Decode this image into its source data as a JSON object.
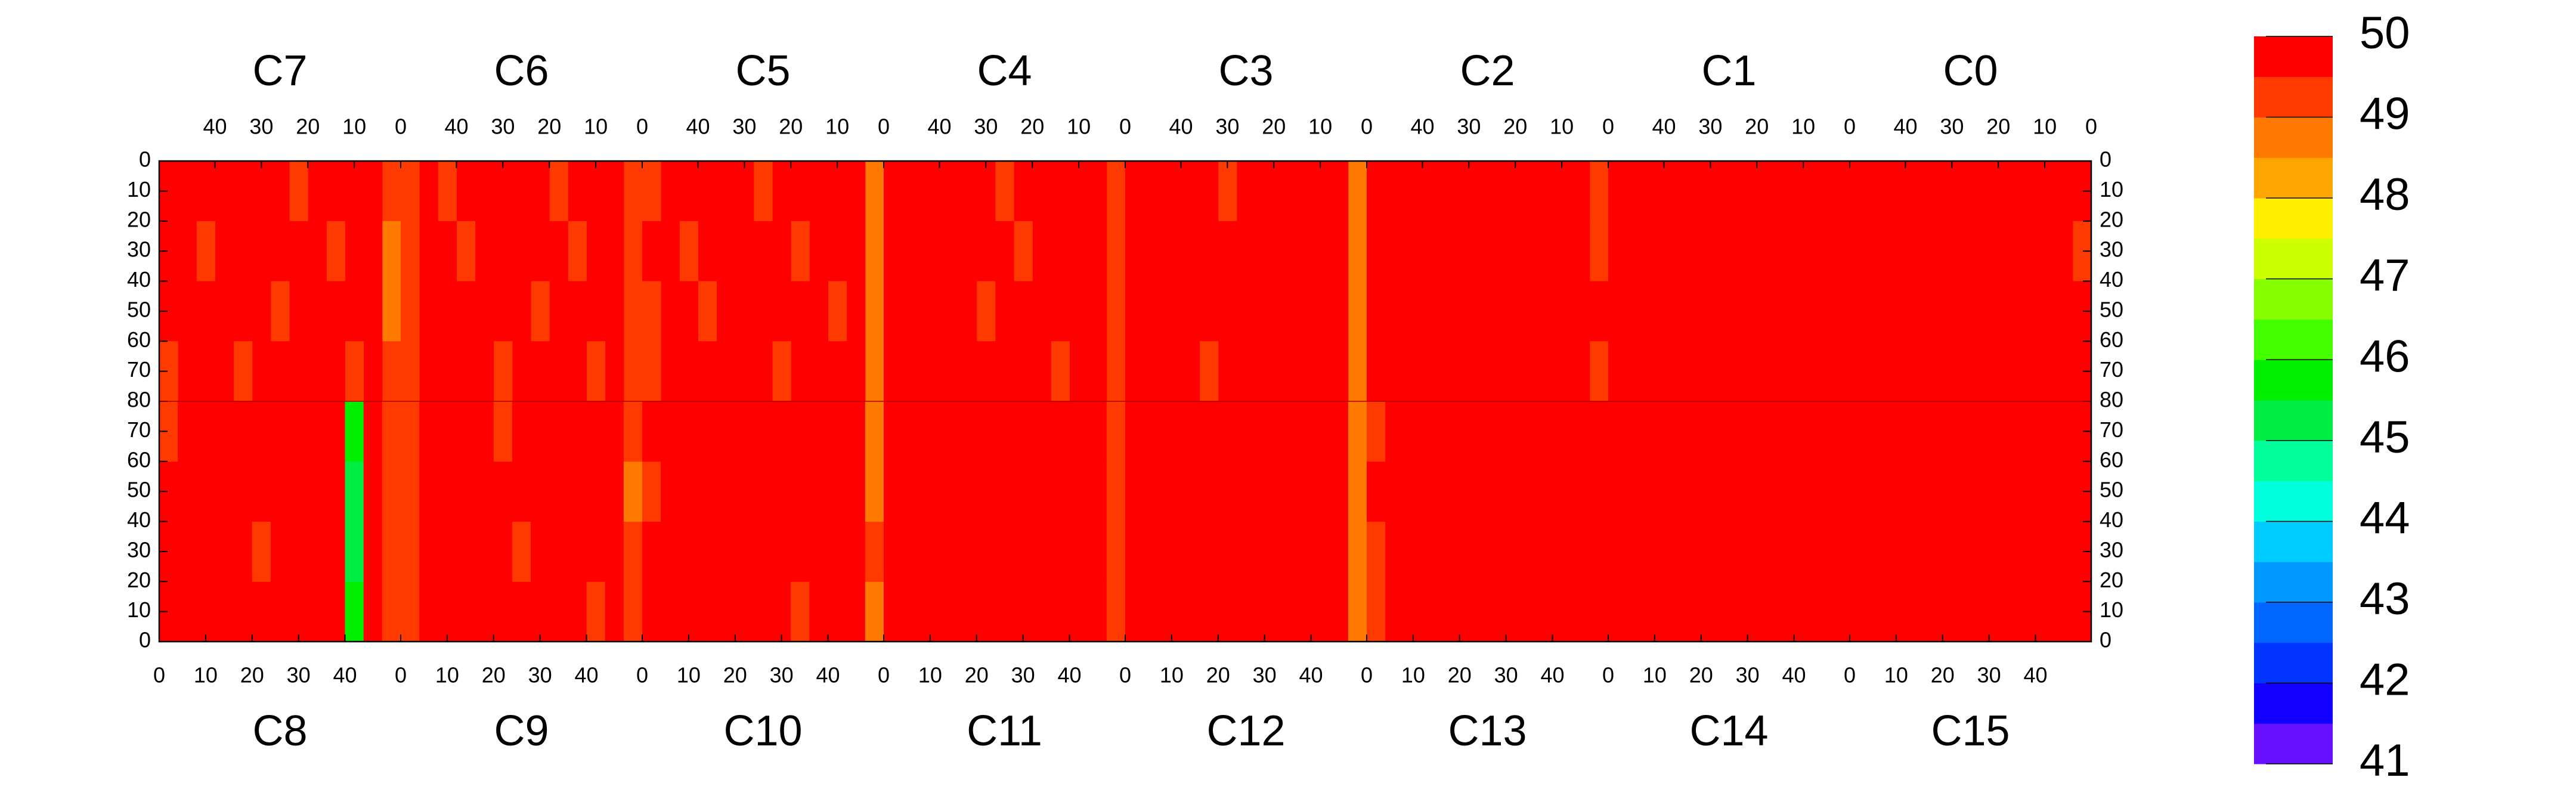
{
  "chart_data": {
    "type": "heatmap",
    "xlim": [
      0,
      52
    ],
    "ylim": [
      0,
      80
    ],
    "xticks": [
      0,
      10,
      20,
      30,
      40
    ],
    "yticks": [
      0,
      10,
      20,
      30,
      40,
      50,
      60,
      70,
      80
    ],
    "zlim": [
      41,
      50
    ],
    "zticks": [
      41,
      42,
      43,
      44,
      45,
      46,
      47,
      48,
      49,
      50
    ],
    "colorscale": [
      "#6610ff",
      "#1100ff",
      "#0033ff",
      "#0066ff",
      "#0099ff",
      "#00ccff",
      "#00ffdd",
      "#00ff99",
      "#00ee44",
      "#00f000",
      "#44ff00",
      "#88ff00",
      "#ccff00",
      "#ffee00",
      "#ffa500",
      "#ff7a00",
      "#ff3a00",
      "#ff0000"
    ],
    "top_panels": [
      {
        "label": "C7",
        "z": [
          [
            49.1,
            49.6,
            49.5,
            49.7,
            49.6,
            49.4,
            49.6,
            49.7,
            49.6,
            49.5,
            49.6,
            49.7,
            49.6
          ],
          [
            48.9,
            49.6,
            49.6,
            49.4,
            49.7,
            49.6,
            49.5,
            49.6,
            49.7,
            49.6,
            49.4,
            49.6,
            49.5
          ],
          [
            48.9,
            49.5,
            49.6,
            49.7,
            49.6,
            49.6,
            49.4,
            49.6,
            49.6,
            49.7,
            49.6,
            49.5,
            49.6
          ],
          [
            49.0,
            49.6,
            49.4,
            49.6,
            49.7,
            49.5,
            49.6,
            49.6,
            49.4,
            49.6,
            49.7,
            49.6,
            49.4
          ]
        ]
      },
      {
        "label": "C6",
        "z": [
          [
            49.3,
            49.6,
            49.5,
            49.6,
            49.4,
            49.6,
            49.7,
            49.5,
            49.6,
            49.6,
            49.4,
            49.6,
            49.3
          ],
          [
            49.2,
            49.5,
            49.6,
            49.4,
            49.6,
            49.6,
            49.5,
            49.7,
            49.6,
            49.4,
            49.6,
            49.5,
            49.4
          ],
          [
            49.3,
            49.6,
            49.6,
            49.7,
            49.5,
            49.4,
            49.6,
            49.6,
            49.5,
            49.6,
            49.7,
            49.6,
            49.3
          ],
          [
            49.1,
            49.6,
            49.4,
            49.6,
            49.6,
            49.5,
            49.6,
            49.4,
            49.6,
            49.6,
            49.5,
            49.6,
            49.4
          ]
        ]
      },
      {
        "label": "C5",
        "z": [
          [
            48.8,
            49.6,
            49.6,
            49.5,
            49.7,
            49.6,
            49.4,
            49.6,
            49.6,
            49.5,
            49.6,
            49.7,
            49.4
          ],
          [
            48.6,
            49.5,
            49.6,
            49.6,
            49.4,
            49.6,
            49.6,
            49.5,
            49.7,
            49.6,
            49.4,
            49.6,
            49.5
          ],
          [
            48.7,
            49.6,
            49.4,
            49.6,
            49.6,
            49.7,
            49.5,
            49.6,
            49.6,
            49.4,
            49.6,
            49.5,
            49.3
          ],
          [
            48.9,
            49.6,
            49.6,
            49.5,
            49.6,
            49.4,
            49.6,
            49.7,
            49.5,
            49.6,
            49.6,
            49.6,
            49.4
          ]
        ]
      },
      {
        "label": "C4",
        "z": [
          [
            49.2,
            49.6,
            49.7,
            49.5,
            49.6,
            49.6,
            49.4,
            49.6,
            49.7,
            49.6,
            49.5,
            49.6,
            49.6
          ],
          [
            49.1,
            49.6,
            49.5,
            49.6,
            49.7,
            49.4,
            49.6,
            49.6,
            49.5,
            49.6,
            49.6,
            49.7,
            49.5
          ],
          [
            49.2,
            49.7,
            49.6,
            49.6,
            49.5,
            49.6,
            49.6,
            49.4,
            49.6,
            49.7,
            49.6,
            49.5,
            49.6
          ],
          [
            49.0,
            49.6,
            49.6,
            49.4,
            49.6,
            49.7,
            49.5,
            49.6,
            49.6,
            49.5,
            49.6,
            49.6,
            49.5
          ]
        ]
      },
      {
        "label": "C3",
        "z": [
          [
            48.9,
            49.6,
            49.7,
            49.6,
            49.5,
            49.6,
            49.7,
            49.4,
            49.6,
            49.7,
            49.6,
            49.6,
            49.6
          ],
          [
            48.8,
            49.7,
            49.6,
            49.6,
            49.7,
            49.5,
            49.6,
            49.6,
            49.7,
            49.6,
            49.5,
            49.7,
            49.6
          ],
          [
            48.9,
            49.6,
            49.6,
            49.7,
            49.6,
            49.6,
            49.5,
            49.7,
            49.6,
            49.6,
            49.7,
            49.6,
            49.5
          ],
          [
            48.7,
            49.6,
            49.7,
            49.5,
            49.6,
            49.7,
            49.6,
            49.6,
            49.4,
            49.7,
            49.6,
            49.6,
            49.6
          ]
        ]
      },
      {
        "label": "C2",
        "z": [
          [
            49.4,
            49.9,
            49.9,
            49.8,
            49.9,
            49.8,
            49.8,
            49.7,
            49.7,
            49.6,
            49.7,
            49.6,
            49.7
          ],
          [
            49.4,
            49.9,
            49.8,
            49.9,
            49.9,
            49.8,
            49.7,
            49.8,
            49.6,
            49.7,
            49.6,
            49.7,
            49.6
          ],
          [
            49.5,
            49.9,
            49.9,
            49.9,
            49.8,
            49.9,
            49.8,
            49.7,
            49.7,
            49.6,
            49.7,
            49.7,
            49.6
          ],
          [
            49.4,
            49.9,
            49.9,
            49.8,
            49.9,
            49.8,
            49.8,
            49.7,
            49.6,
            49.7,
            49.6,
            49.6,
            49.7
          ]
        ]
      },
      {
        "label": "C1",
        "z": [
          [
            49.7,
            49.9,
            49.9,
            49.9,
            49.9,
            49.9,
            49.9,
            49.9,
            49.9,
            49.9,
            49.9,
            49.9,
            49.9
          ],
          [
            49.7,
            49.9,
            49.9,
            49.9,
            49.9,
            49.9,
            49.9,
            49.9,
            49.9,
            49.9,
            49.9,
            49.9,
            49.9
          ],
          [
            49.8,
            49.9,
            49.9,
            49.9,
            49.9,
            49.9,
            49.9,
            49.9,
            49.9,
            49.9,
            49.9,
            49.9,
            49.9
          ],
          [
            49.7,
            49.9,
            49.9,
            49.9,
            49.9,
            49.9,
            49.9,
            49.9,
            49.9,
            49.9,
            49.9,
            49.9,
            49.8
          ]
        ]
      },
      {
        "label": "C0",
        "z": [
          [
            49.5,
            49.8,
            49.9,
            49.8,
            49.8,
            49.9,
            49.8,
            49.8,
            49.9,
            49.8,
            49.8,
            49.9,
            49.8
          ],
          [
            49.4,
            49.8,
            49.8,
            49.9,
            49.8,
            49.8,
            49.9,
            49.8,
            49.8,
            49.9,
            49.8,
            49.8,
            49.9
          ],
          [
            49.5,
            49.9,
            49.8,
            49.8,
            49.9,
            49.8,
            49.8,
            49.9,
            49.8,
            49.8,
            49.9,
            49.8,
            49.8
          ],
          [
            49.5,
            49.8,
            49.8,
            49.9,
            49.8,
            49.8,
            49.9,
            49.8,
            49.8,
            49.8,
            49.8,
            49.9,
            49.8
          ]
        ]
      }
    ],
    "bottom_panels": [
      {
        "label": "C8",
        "z": [
          [
            49.5,
            49.6,
            49.6,
            49.5,
            49.7,
            49.6,
            49.6,
            49.5,
            49.6,
            49.6,
            45.6,
            49.6,
            49.2
          ],
          [
            49.6,
            49.5,
            49.6,
            49.7,
            49.6,
            49.4,
            49.6,
            49.6,
            49.5,
            49.7,
            45.2,
            49.6,
            49.1
          ],
          [
            49.6,
            49.6,
            49.5,
            49.6,
            49.6,
            49.6,
            49.5,
            49.7,
            49.6,
            49.6,
            45.0,
            49.5,
            49.2
          ],
          [
            49.4,
            49.6,
            49.7,
            49.6,
            49.5,
            49.6,
            49.6,
            49.6,
            49.7,
            49.5,
            45.8,
            49.6,
            49.0
          ]
        ]
      },
      {
        "label": "C9",
        "z": [
          [
            49.4,
            49.6,
            49.6,
            49.5,
            49.6,
            49.7,
            49.6,
            49.5,
            49.6,
            49.6,
            49.4,
            49.6,
            49.0
          ],
          [
            49.3,
            49.6,
            49.5,
            49.6,
            49.6,
            49.6,
            49.4,
            49.6,
            49.7,
            49.6,
            49.5,
            49.6,
            49.1
          ],
          [
            49.4,
            49.5,
            49.6,
            49.7,
            49.5,
            49.6,
            49.6,
            49.6,
            49.5,
            49.6,
            49.6,
            49.5,
            48.9
          ],
          [
            49.3,
            49.6,
            49.6,
            49.6,
            49.6,
            49.4,
            49.6,
            49.7,
            49.6,
            49.5,
            49.6,
            49.6,
            49.0
          ]
        ]
      },
      {
        "label": "C10",
        "z": [
          [
            49.5,
            49.6,
            49.7,
            49.6,
            49.5,
            49.6,
            49.6,
            49.6,
            49.4,
            49.6,
            49.6,
            49.5,
            48.9
          ],
          [
            49.5,
            49.6,
            49.6,
            49.6,
            49.6,
            49.5,
            49.7,
            49.6,
            49.6,
            49.5,
            49.6,
            49.6,
            49.0
          ],
          [
            49.4,
            49.7,
            49.6,
            49.5,
            49.6,
            49.6,
            49.6,
            49.5,
            49.6,
            49.6,
            49.7,
            49.6,
            48.6
          ],
          [
            49.5,
            49.6,
            49.5,
            49.6,
            49.7,
            49.6,
            49.5,
            49.6,
            49.6,
            49.6,
            49.5,
            49.6,
            48.9
          ]
        ]
      },
      {
        "label": "C11",
        "z": [
          [
            49.6,
            49.7,
            49.6,
            49.6,
            49.5,
            49.7,
            49.6,
            49.6,
            49.7,
            49.6,
            49.6,
            49.7,
            49.2
          ],
          [
            49.6,
            49.6,
            49.7,
            49.6,
            49.6,
            49.6,
            49.7,
            49.5,
            49.6,
            49.7,
            49.6,
            49.6,
            49.1
          ],
          [
            49.6,
            49.7,
            49.6,
            49.7,
            49.6,
            49.6,
            49.6,
            49.7,
            49.6,
            49.6,
            49.7,
            49.6,
            49.3
          ],
          [
            49.6,
            49.6,
            49.6,
            49.6,
            49.7,
            49.5,
            49.6,
            49.6,
            49.7,
            49.6,
            49.6,
            49.6,
            49.2
          ]
        ]
      },
      {
        "label": "C12",
        "z": [
          [
            49.6,
            49.7,
            49.6,
            49.7,
            49.6,
            49.7,
            49.6,
            49.7,
            49.6,
            49.7,
            49.7,
            49.6,
            48.8
          ],
          [
            49.6,
            49.7,
            49.7,
            49.6,
            49.7,
            49.6,
            49.7,
            49.6,
            49.7,
            49.6,
            49.7,
            49.7,
            48.9
          ],
          [
            49.5,
            49.6,
            49.7,
            49.7,
            49.6,
            49.7,
            49.6,
            49.7,
            49.7,
            49.6,
            49.6,
            49.7,
            48.7
          ],
          [
            49.6,
            49.7,
            49.6,
            49.7,
            49.7,
            49.6,
            49.7,
            49.6,
            49.7,
            49.7,
            49.6,
            49.6,
            48.8
          ]
        ]
      },
      {
        "label": "C13",
        "z": [
          [
            49.4,
            49.7,
            49.7,
            49.7,
            49.7,
            49.7,
            49.7,
            49.9,
            49.9,
            49.9,
            49.9,
            49.9,
            49.9
          ],
          [
            49.4,
            49.7,
            49.7,
            49.7,
            49.7,
            49.7,
            49.8,
            49.9,
            49.9,
            49.9,
            49.9,
            49.9,
            49.9
          ],
          [
            49.5,
            49.7,
            49.7,
            49.7,
            49.8,
            49.7,
            49.8,
            49.9,
            49.9,
            49.9,
            49.9,
            49.9,
            49.9
          ],
          [
            49.4,
            49.7,
            49.7,
            49.8,
            49.7,
            49.8,
            49.8,
            49.9,
            49.9,
            49.9,
            49.9,
            49.9,
            49.9
          ]
        ]
      },
      {
        "label": "C14",
        "z": [
          [
            49.8,
            49.9,
            49.9,
            49.9,
            49.9,
            49.9,
            49.9,
            49.9,
            49.9,
            49.9,
            49.9,
            49.9,
            49.9
          ],
          [
            49.8,
            49.9,
            49.9,
            49.9,
            49.9,
            49.9,
            49.9,
            49.9,
            49.9,
            49.9,
            49.9,
            49.9,
            49.9
          ],
          [
            49.8,
            49.9,
            49.9,
            49.9,
            49.9,
            49.9,
            49.9,
            49.9,
            49.9,
            49.9,
            49.9,
            49.9,
            49.9
          ],
          [
            49.8,
            49.9,
            49.9,
            49.9,
            49.9,
            49.9,
            49.9,
            49.9,
            49.9,
            49.9,
            49.9,
            49.9,
            49.9
          ]
        ]
      },
      {
        "label": "C15",
        "z": [
          [
            49.5,
            49.8,
            49.8,
            49.8,
            49.7,
            49.8,
            49.8,
            49.8,
            49.7,
            49.8,
            49.8,
            49.8,
            49.8
          ],
          [
            49.5,
            49.8,
            49.8,
            49.7,
            49.8,
            49.8,
            49.8,
            49.7,
            49.8,
            49.8,
            49.8,
            49.8,
            49.8
          ],
          [
            49.6,
            49.8,
            49.8,
            49.8,
            49.8,
            49.8,
            49.8,
            49.8,
            49.8,
            49.8,
            49.8,
            49.8,
            49.8
          ],
          [
            49.5,
            49.8,
            49.8,
            49.8,
            49.8,
            49.8,
            49.8,
            49.8,
            49.8,
            49.8,
            49.8,
            49.8,
            49.8
          ]
        ]
      }
    ]
  }
}
